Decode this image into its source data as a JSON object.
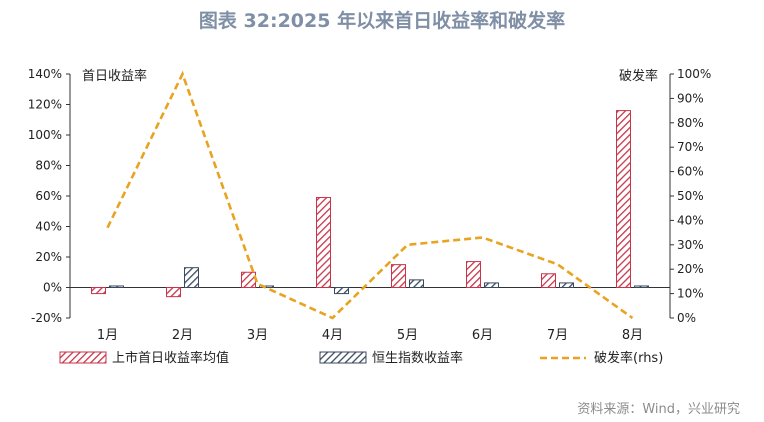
{
  "title": "图表 32:2025 年以来首日收益率和破发率",
  "source": "资料来源：Wind，兴业研究",
  "colors": {
    "series1": "#c8344a",
    "series2": "#3b4a5e",
    "series3": "#e8a320",
    "axis": "#333333"
  },
  "chart_data": {
    "type": "bar",
    "categories": [
      "1月",
      "2月",
      "3月",
      "4月",
      "5月",
      "6月",
      "7月",
      "8月"
    ],
    "left_axis": {
      "label": "首日收益率",
      "ylim": [
        -20,
        140
      ],
      "ticks": [
        "-20%",
        "0%",
        "20%",
        "40%",
        "60%",
        "80%",
        "100%",
        "120%",
        "140%"
      ]
    },
    "right_axis": {
      "label": "破发率",
      "ylim": [
        0,
        100
      ],
      "ticks": [
        "0%",
        "10%",
        "20%",
        "30%",
        "40%",
        "50%",
        "60%",
        "70%",
        "80%",
        "90%",
        "100%"
      ]
    },
    "series": [
      {
        "name": "上市首日收益率均值",
        "type": "bar",
        "axis": "left",
        "values": [
          -4,
          -6,
          10,
          59,
          15,
          17,
          9,
          116
        ]
      },
      {
        "name": "恒生指数收益率",
        "type": "bar",
        "axis": "left",
        "values": [
          1,
          13,
          1,
          -4,
          5,
          3,
          3,
          1
        ]
      },
      {
        "name": "破发率(rhs)",
        "type": "line",
        "axis": "right",
        "values": [
          37,
          100,
          14,
          0,
          30,
          33,
          22,
          0
        ]
      }
    ],
    "grid": false,
    "legend": "bottom"
  }
}
